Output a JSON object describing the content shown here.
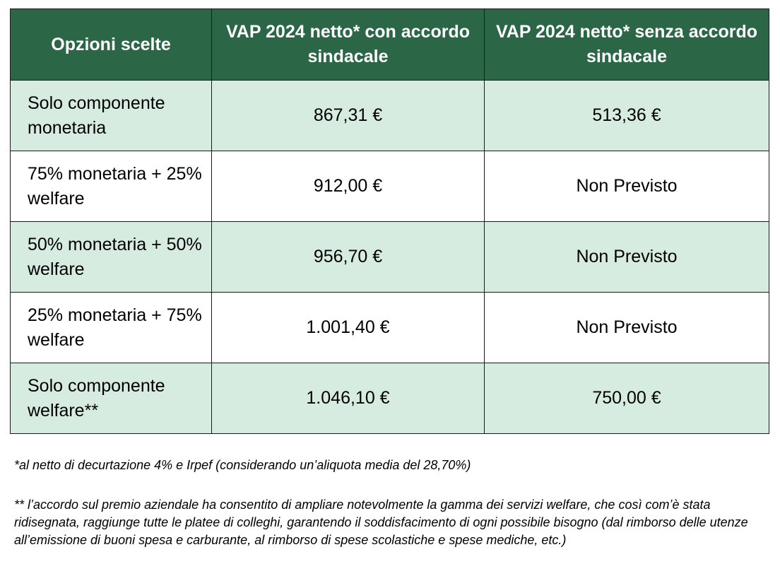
{
  "table": {
    "headers": [
      "Opzioni scelte",
      "VAP 2024 netto* con accordo sindacale",
      "VAP 2024 netto* senza accordo sindacale"
    ],
    "rows": [
      {
        "option": "Solo componente monetaria",
        "with_agreement": "867,31 €",
        "without_agreement": "513,36 €"
      },
      {
        "option": "75% monetaria + 25% welfare",
        "with_agreement": "912,00 €",
        "without_agreement": "Non Previsto"
      },
      {
        "option": "50% monetaria + 50% welfare",
        "with_agreement": "956,70 €",
        "without_agreement": "Non Previsto"
      },
      {
        "option": "25% monetaria + 75% welfare",
        "with_agreement": "1.001,40 €",
        "without_agreement": "Non Previsto"
      },
      {
        "option": "Solo componente welfare**",
        "with_agreement": "1.046,10 €",
        "without_agreement": "750,00 €"
      }
    ]
  },
  "footnotes": {
    "note1": "*al netto di decurtazione 4% e Irpef (considerando un’aliquota media del 28,70%)",
    "note2": "** l’accordo sul premio aziendale ha consentito di ampliare notevolmente la gamma dei servizi welfare, che così com’è stata ridisegnata, raggiunge tutte le platee di colleghi, garantendo il soddisfacimento di ogni possibile bisogno (dal rimborso delle utenze all’emissione di buoni spesa e carburante, al rimborso di spese scolastiche e spese mediche, etc.)"
  },
  "colors": {
    "header_bg": "#2b6647",
    "shaded_row_bg": "#d6ece1",
    "border": "#1a1a1a"
  }
}
